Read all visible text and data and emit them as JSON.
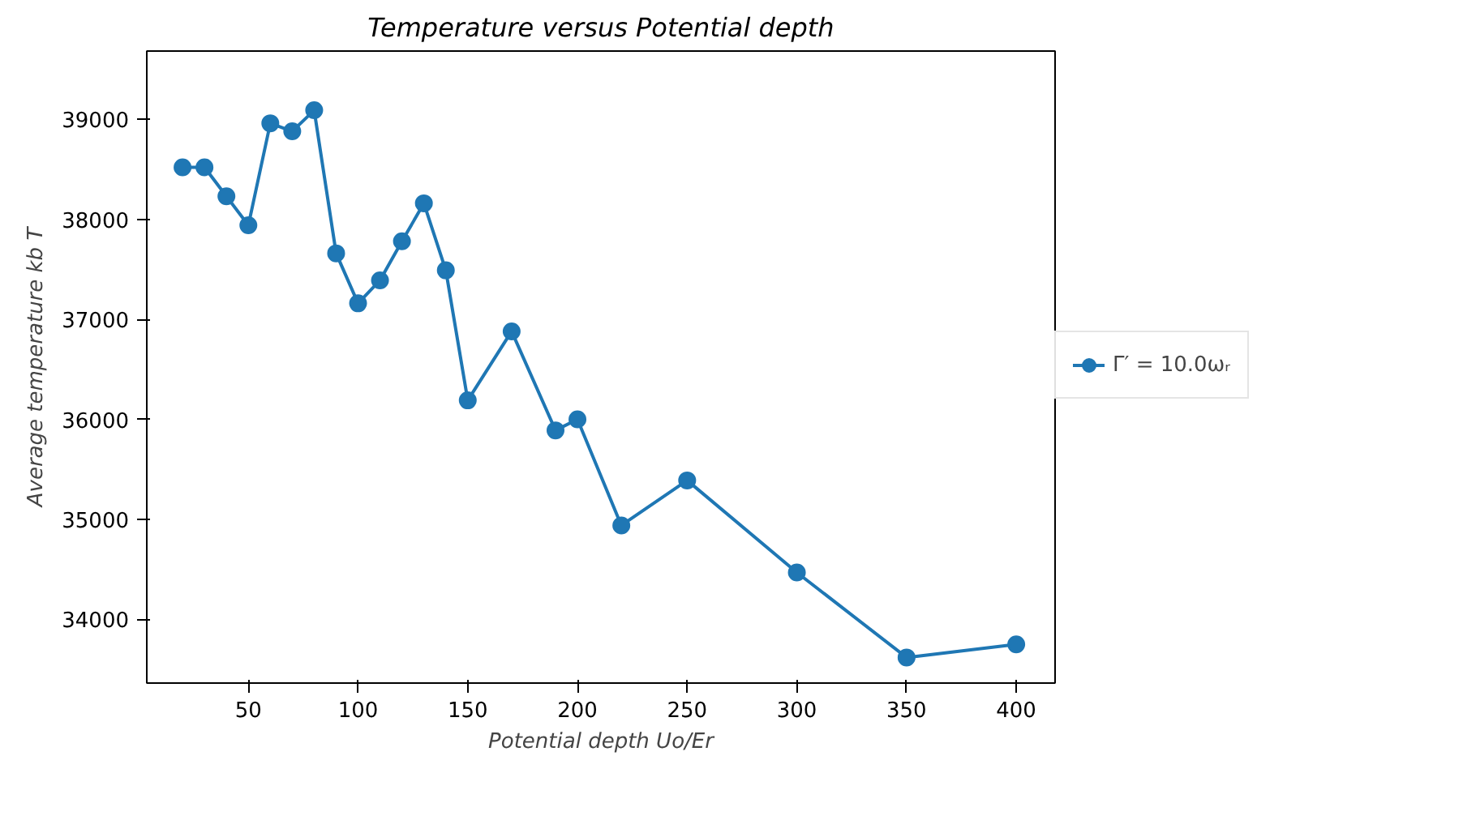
{
  "chart_data": {
    "type": "line",
    "title": "Temperature versus Potential depth",
    "xlabel": "Potential depth Uo/Er",
    "ylabel": "Average temperature kb T",
    "x": [
      20,
      30,
      40,
      50,
      60,
      70,
      80,
      90,
      100,
      110,
      120,
      130,
      140,
      150,
      170,
      190,
      200,
      220,
      250,
      300,
      350,
      400
    ],
    "series": [
      {
        "name": "Γ′ = 10.0ωᵣ",
        "color": "#1f77b4",
        "values": [
          38520,
          38520,
          38230,
          37940,
          38960,
          38880,
          39090,
          37660,
          37160,
          37390,
          37780,
          38160,
          37490,
          36190,
          36880,
          35890,
          36000,
          34940,
          35390,
          34470,
          33620,
          33750
        ]
      }
    ],
    "xlim": [
      3.7,
      417.7
    ],
    "ylim": [
      33364,
      39682
    ],
    "xticks": [
      50,
      100,
      150,
      200,
      250,
      300,
      350,
      400
    ],
    "yticks": [
      34000,
      35000,
      36000,
      37000,
      38000,
      39000
    ],
    "grid": false,
    "legend": "right",
    "marker": "circle",
    "line_style": "solid"
  }
}
